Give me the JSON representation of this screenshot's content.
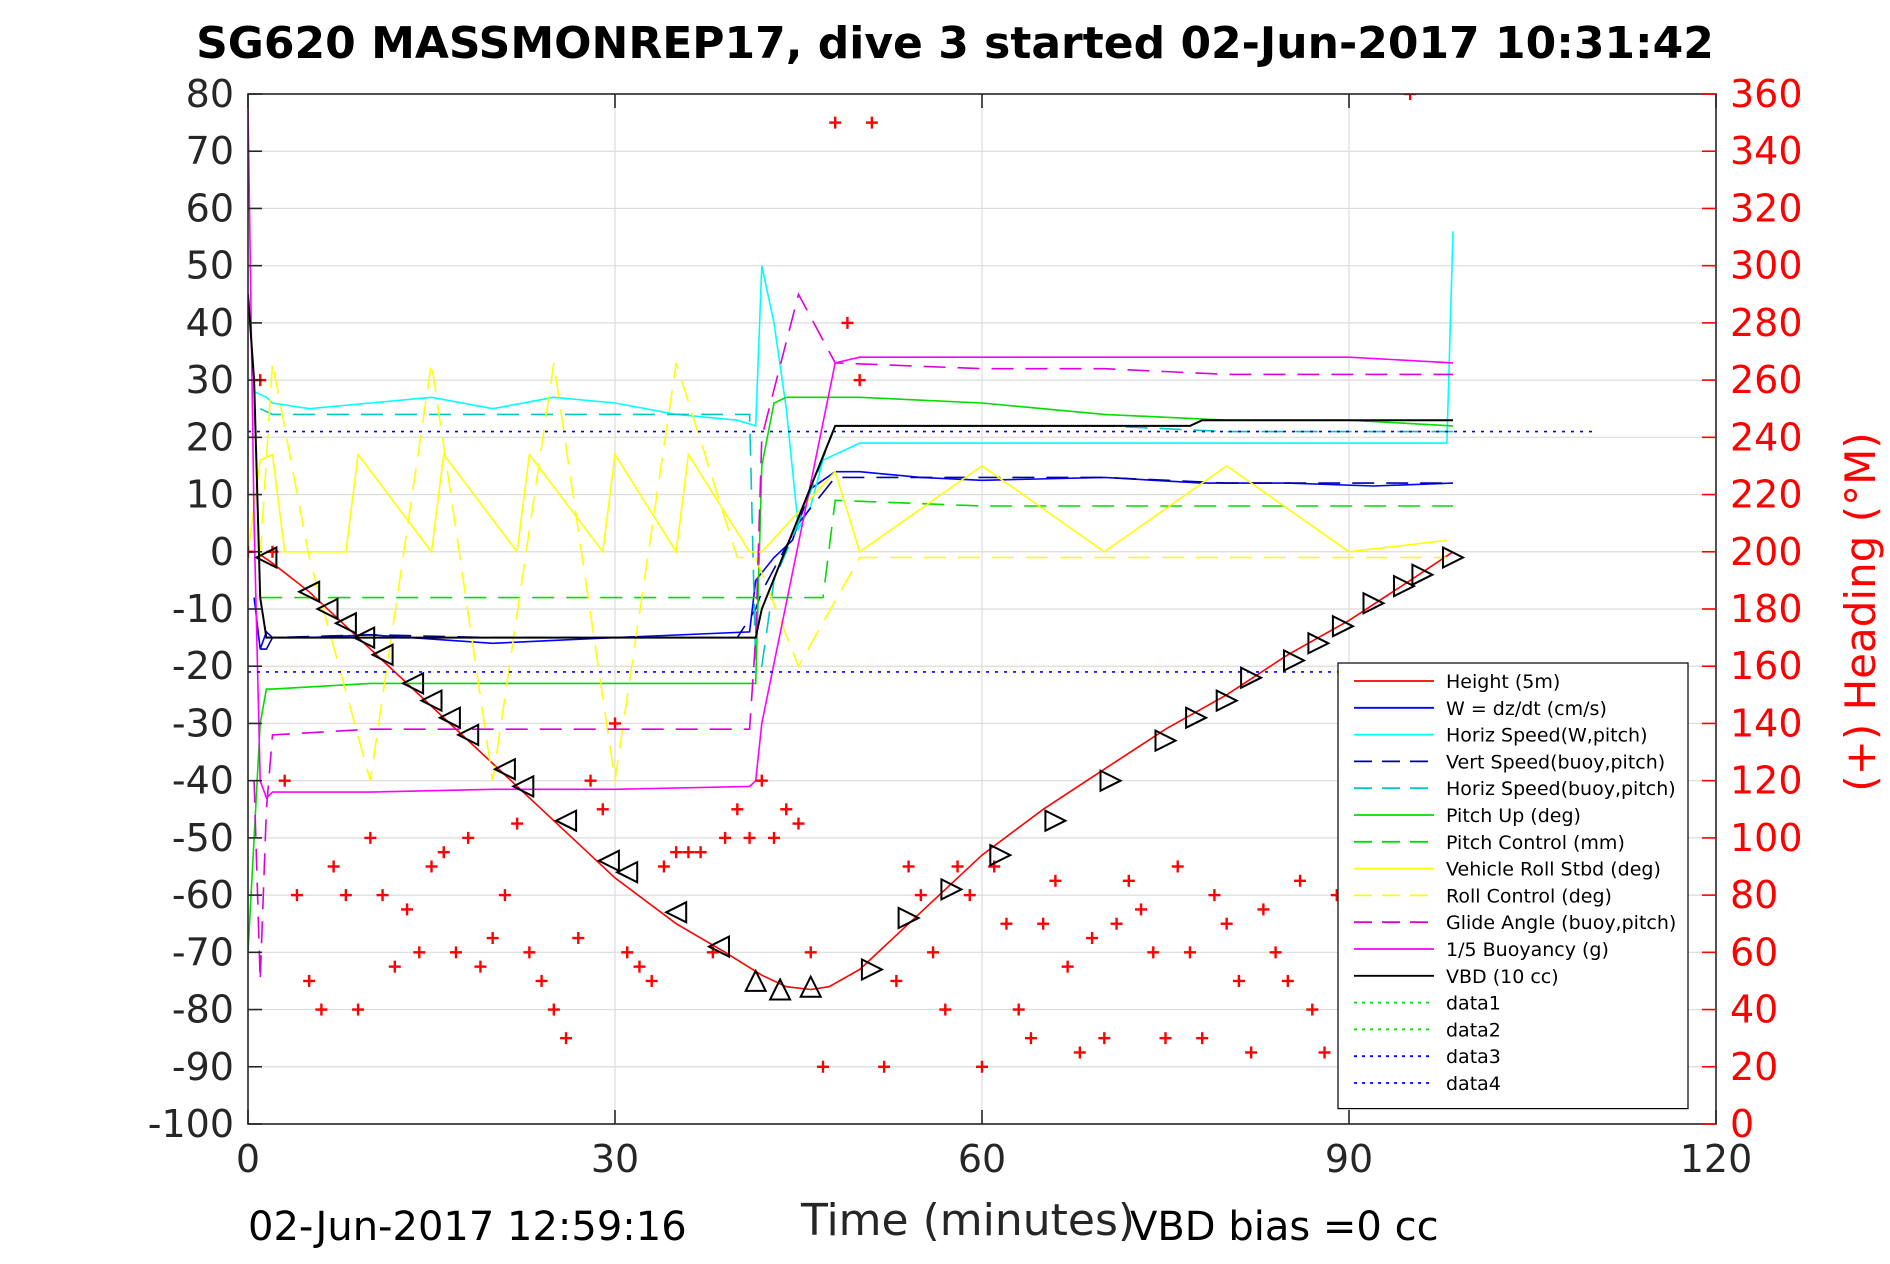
{
  "chart_data": {
    "type": "line",
    "title": "SG620 MASSMONREP17, dive 3 started 02-Jun-2017 10:31:42",
    "xlabel": "Time (minutes)",
    "ylabel": "",
    "ylabel_right": "(+) Heading (°M)",
    "footer_left": "02-Jun-2017 12:59:16",
    "footer_right": "VBD bias =0 cc",
    "xlim": [
      0,
      120
    ],
    "ylim": [
      -100,
      80
    ],
    "ylim_right": [
      0,
      360
    ],
    "x_ticks": [
      "0",
      "30",
      "60",
      "90",
      "120"
    ],
    "y_ticks": [
      "80",
      "70",
      "60",
      "50",
      "40",
      "30",
      "20",
      "10",
      "0",
      "-10",
      "-20",
      "-30",
      "-40",
      "-50",
      "-60",
      "-70",
      "-80",
      "-90",
      "-100"
    ],
    "y_ticks_right": [
      "360",
      "340",
      "320",
      "300",
      "280",
      "260",
      "240",
      "220",
      "200",
      "180",
      "160",
      "140",
      "120",
      "100",
      "80",
      "60",
      "40",
      "20",
      "0"
    ],
    "grid": true,
    "legend_position": "bottom-right",
    "colors": {
      "axes": "#262626",
      "grid": "#dcdcdc",
      "heading": "#ff0000"
    },
    "series": [
      {
        "name": "Height (5m)",
        "color": "#ff0000",
        "style": "solid",
        "x": [
          1,
          2,
          5,
          8,
          11,
          15,
          20,
          25,
          30,
          35,
          39,
          42,
          44,
          46,
          47.5,
          50,
          55,
          60,
          65,
          70,
          75,
          80,
          85,
          90,
          95,
          98.5
        ],
        "y": [
          -0.5,
          -2,
          -7,
          -13,
          -19,
          -27,
          -37,
          -47,
          -57,
          -65,
          -70,
          -74,
          -76,
          -76.5,
          -76,
          -73,
          -63,
          -53,
          -45,
          -38,
          -31,
          -25,
          -18,
          -12,
          -5,
          0
        ]
      },
      {
        "name": "W = dz/dt (cm/s)",
        "color": "#0000ff",
        "style": "solid",
        "x": [
          0.5,
          1,
          1.5,
          2,
          5,
          10,
          20,
          30,
          41,
          41.5,
          43,
          44.5,
          46,
          48,
          50,
          55,
          60,
          70,
          78,
          85,
          92,
          98.5
        ],
        "y": [
          -8,
          -17,
          -14,
          -15,
          -15,
          -14.5,
          -16,
          -15,
          -14,
          -5,
          -1,
          2,
          11,
          14,
          14,
          13,
          12.5,
          13,
          12,
          12,
          11.5,
          12
        ]
      },
      {
        "name": "Horiz Speed(W,pitch)",
        "color": "#00ffff",
        "style": "solid",
        "x": [
          0.5,
          1.5,
          2,
          5,
          10,
          15,
          20,
          25,
          30,
          35,
          40,
          41.5,
          42,
          43,
          44,
          45,
          46,
          47,
          50,
          55,
          60,
          70,
          80,
          90,
          98,
          98.5
        ],
        "y": [
          28,
          27,
          26,
          25,
          26,
          27,
          25,
          27,
          26,
          24,
          23,
          22,
          50,
          40,
          25,
          4,
          8,
          16,
          19,
          19,
          19,
          19,
          19,
          19,
          19,
          56
        ]
      },
      {
        "name": "Vert Speed(buoy,pitch)",
        "color": "#0000a0",
        "style": "dash",
        "x": [
          1,
          1.5,
          2,
          10,
          20,
          30,
          40,
          41.5,
          42,
          45,
          48,
          60,
          70,
          80,
          90,
          98.5
        ],
        "y": [
          -17,
          -17,
          -15,
          -14.5,
          -15,
          -15,
          -15,
          -10,
          -7,
          5,
          13,
          13,
          13,
          12,
          12,
          12
        ]
      },
      {
        "name": "Horiz Speed(buoy,pitch)",
        "color": "#00c8c8",
        "style": "dash",
        "x": [
          1,
          2,
          10,
          20,
          30,
          40,
          41,
          41.5,
          42,
          43,
          45,
          48,
          60,
          70,
          80,
          90,
          98.5
        ],
        "y": [
          25,
          24,
          24,
          24,
          24,
          24,
          24,
          -20,
          -20,
          -5,
          5,
          22,
          22,
          22,
          21,
          21,
          21
        ]
      },
      {
        "name": "Pitch Up (deg)",
        "color": "#00dd00",
        "style": "solid",
        "x": [
          0,
          0.5,
          1,
          1.5,
          2,
          10,
          20,
          30,
          41.5,
          42,
          43,
          44,
          50,
          60,
          70,
          80,
          90,
          98.5
        ],
        "y": [
          -70,
          -50,
          -30,
          -24,
          -24,
          -23,
          -23,
          -23,
          -23,
          15,
          26,
          27,
          27,
          26,
          24,
          23,
          23,
          22
        ]
      },
      {
        "name": "Pitch Control (mm)",
        "color": "#00dd00",
        "style": "dash",
        "x": [
          1,
          2,
          10,
          20,
          30,
          40,
          41,
          41.5,
          47,
          48,
          60,
          70,
          80,
          90,
          98.5
        ],
        "y": [
          -8,
          -8,
          -8,
          -8,
          -8,
          -8,
          -8,
          -8,
          -8,
          9,
          8,
          8,
          8,
          8,
          8
        ]
      },
      {
        "name": "Vehicle Roll Stbd (deg)",
        "color": "#ffff00",
        "style": "solid",
        "x": [
          0,
          1,
          2,
          3,
          8,
          9,
          15,
          16,
          22,
          23,
          29,
          30,
          35,
          36,
          41,
          42,
          48,
          50,
          60,
          70,
          80,
          90,
          98
        ],
        "y": [
          0,
          16,
          17,
          0,
          0,
          17,
          0,
          17,
          0,
          17,
          0,
          17,
          0,
          17,
          0,
          0,
          14,
          0,
          15,
          0,
          15,
          0,
          2
        ]
      },
      {
        "name": "Roll Control (deg)",
        "color": "#ffff00",
        "style": "dash",
        "x": [
          1,
          2,
          5,
          10,
          15,
          20,
          25,
          30,
          35,
          40,
          41.5,
          45,
          50,
          60,
          70,
          80,
          90,
          98
        ],
        "y": [
          -1,
          33,
          -1,
          -40,
          33,
          -40,
          33,
          -40,
          33,
          -1,
          -1,
          -20,
          -1,
          -1,
          -1,
          -1,
          -1,
          -1
        ]
      },
      {
        "name": "Glide Angle (buoy,pitch)",
        "color": "#dd00dd",
        "style": "dash",
        "x": [
          0.5,
          1,
          1.5,
          2,
          10,
          20,
          30,
          40,
          41,
          41.5,
          42,
          45,
          48,
          60,
          70,
          80,
          90,
          98.5
        ],
        "y": [
          -40,
          -75,
          -45,
          -32,
          -31,
          -31,
          -31,
          -31,
          -31,
          -15,
          20,
          45,
          33,
          32,
          32,
          31,
          31,
          31
        ]
      },
      {
        "name": "1/5 Buoyancy (g)",
        "color": "#ff00ff",
        "style": "solid",
        "x": [
          0,
          0.5,
          1,
          1.5,
          2,
          3,
          10,
          20,
          30,
          41,
          41.5,
          42,
          48,
          50,
          60,
          70,
          80,
          90,
          98.5
        ],
        "y": [
          78,
          5,
          -40,
          -43,
          -42,
          -42,
          -42,
          -41.5,
          -41.5,
          -41,
          -40,
          -30,
          33,
          34,
          34,
          34,
          34,
          34,
          33
        ]
      },
      {
        "name": "VBD (10 cc)",
        "color": "#000000",
        "style": "solid",
        "x": [
          0,
          0.5,
          1,
          1.5,
          41.5,
          42,
          48,
          49,
          70,
          77,
          78,
          90,
          98.5
        ],
        "y": [
          45,
          30,
          -8,
          -15,
          -15,
          -10,
          22,
          22,
          22,
          22,
          23,
          23,
          23
        ]
      },
      {
        "name": "data1",
        "color": "#00dd00",
        "style": "dot",
        "x": [],
        "y": []
      },
      {
        "name": "data2",
        "color": "#00dd00",
        "style": "dot",
        "x": [],
        "y": []
      },
      {
        "name": "data3",
        "color": "#0000ff",
        "style": "dot",
        "x": [
          0,
          110
        ],
        "y": [
          21,
          21
        ]
      },
      {
        "name": "data4",
        "color": "#0000ff",
        "style": "dot",
        "x": [
          0,
          110
        ],
        "y": [
          -21,
          -21
        ]
      }
    ],
    "heading_series": {
      "color": "#ff0000",
      "marker": "+",
      "x": [
        0,
        1,
        2,
        3,
        4,
        5,
        6,
        7,
        8,
        9,
        10,
        11,
        12,
        13,
        14,
        15,
        16,
        17,
        18,
        19,
        20,
        21,
        22,
        23,
        24,
        25,
        26,
        27,
        28,
        29,
        30,
        31,
        32,
        33,
        34,
        35,
        36,
        37,
        38,
        39,
        40,
        41,
        42,
        43,
        44,
        45,
        46,
        47,
        48,
        49,
        50,
        51,
        52,
        53,
        54,
        55,
        56,
        57,
        58,
        59,
        60,
        61,
        62,
        63,
        64,
        65,
        66,
        67,
        68,
        69,
        70,
        71,
        72,
        73,
        74,
        75,
        76,
        77,
        78,
        79,
        80,
        81,
        82,
        83,
        84,
        85,
        86,
        87,
        88,
        89,
        90,
        91,
        92,
        93,
        94,
        95
      ],
      "y": [
        200,
        260,
        200,
        120,
        80,
        50,
        40,
        90,
        80,
        40,
        100,
        80,
        55,
        75,
        60,
        90,
        95,
        60,
        100,
        55,
        65,
        80,
        105,
        60,
        50,
        40,
        30,
        65,
        120,
        110,
        140,
        60,
        55,
        50,
        90,
        95,
        95,
        95,
        60,
        100,
        110,
        100,
        120,
        100,
        110,
        105,
        60,
        20,
        350,
        280,
        260,
        350,
        20,
        50,
        90,
        80,
        60,
        40,
        90,
        80,
        20,
        90,
        70,
        40,
        30,
        70,
        85,
        55,
        25,
        65,
        30,
        70,
        85,
        75,
        60,
        30,
        90,
        60,
        30,
        80,
        70,
        50,
        25,
        75,
        60,
        50,
        85,
        40,
        25,
        80,
        75,
        60,
        85,
        60,
        20,
        360
      ]
    },
    "heading_markers": {
      "descent": {
        "x": [
          1.5,
          5,
          6.5,
          8,
          9.5,
          11,
          13.5,
          15,
          16.5,
          18,
          21,
          22.5,
          26,
          29.5,
          31,
          35,
          38.5
        ],
        "y": [
          -1,
          -7,
          -10,
          -12.5,
          -15,
          -18,
          -23,
          -26,
          -29,
          -32,
          -38,
          -41,
          -47,
          -54,
          -56,
          -63,
          -69
        ]
      },
      "bottom": {
        "x": [
          41.5,
          43.5,
          46
        ],
        "y": [
          -75,
          -76.5,
          -76
        ]
      },
      "ascent": {
        "x": [
          51,
          54,
          57.5,
          61.5,
          66,
          70.5,
          75,
          77.5,
          80,
          82,
          85.5,
          87.5,
          89.5,
          92,
          94.5,
          96,
          98.5
        ],
        "y": [
          -73,
          -64,
          -59,
          -53,
          -47,
          -40,
          -33,
          -29,
          -26,
          -22,
          -19,
          -16,
          -13,
          -9,
          -6,
          -4,
          -1
        ]
      }
    }
  }
}
